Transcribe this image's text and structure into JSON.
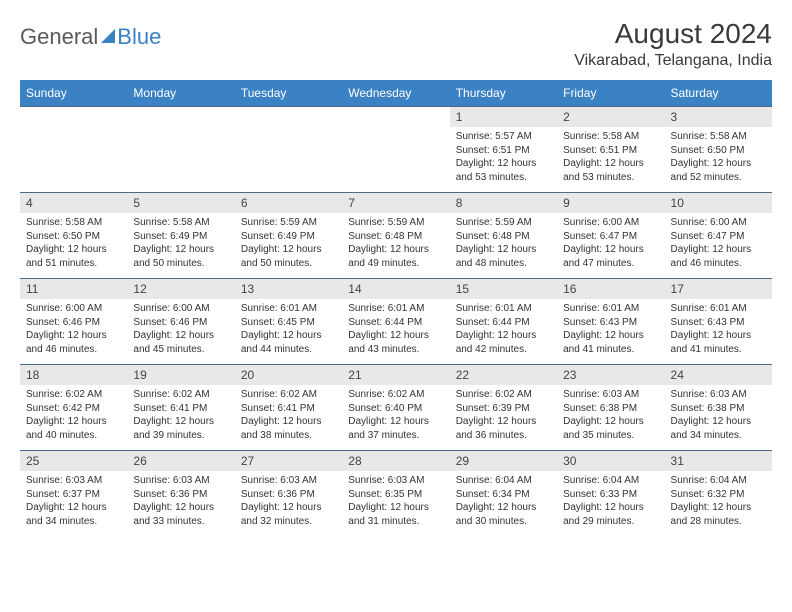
{
  "logo": {
    "part1": "General",
    "part2": "Blue"
  },
  "title": "August 2024",
  "location": "Vikarabad, Telangana, India",
  "colors": {
    "header_bg": "#3b82c4",
    "header_fg": "#ffffff",
    "daynum_bg": "#e8e8e8",
    "border": "#4a6a8a",
    "text": "#333333"
  },
  "days_of_week": [
    "Sunday",
    "Monday",
    "Tuesday",
    "Wednesday",
    "Thursday",
    "Friday",
    "Saturday"
  ],
  "weeks": [
    [
      null,
      null,
      null,
      null,
      {
        "n": "1",
        "sr": "5:57 AM",
        "ss": "6:51 PM",
        "dl": "12 hours and 53 minutes."
      },
      {
        "n": "2",
        "sr": "5:58 AM",
        "ss": "6:51 PM",
        "dl": "12 hours and 53 minutes."
      },
      {
        "n": "3",
        "sr": "5:58 AM",
        "ss": "6:50 PM",
        "dl": "12 hours and 52 minutes."
      }
    ],
    [
      {
        "n": "4",
        "sr": "5:58 AM",
        "ss": "6:50 PM",
        "dl": "12 hours and 51 minutes."
      },
      {
        "n": "5",
        "sr": "5:58 AM",
        "ss": "6:49 PM",
        "dl": "12 hours and 50 minutes."
      },
      {
        "n": "6",
        "sr": "5:59 AM",
        "ss": "6:49 PM",
        "dl": "12 hours and 50 minutes."
      },
      {
        "n": "7",
        "sr": "5:59 AM",
        "ss": "6:48 PM",
        "dl": "12 hours and 49 minutes."
      },
      {
        "n": "8",
        "sr": "5:59 AM",
        "ss": "6:48 PM",
        "dl": "12 hours and 48 minutes."
      },
      {
        "n": "9",
        "sr": "6:00 AM",
        "ss": "6:47 PM",
        "dl": "12 hours and 47 minutes."
      },
      {
        "n": "10",
        "sr": "6:00 AM",
        "ss": "6:47 PM",
        "dl": "12 hours and 46 minutes."
      }
    ],
    [
      {
        "n": "11",
        "sr": "6:00 AM",
        "ss": "6:46 PM",
        "dl": "12 hours and 46 minutes."
      },
      {
        "n": "12",
        "sr": "6:00 AM",
        "ss": "6:46 PM",
        "dl": "12 hours and 45 minutes."
      },
      {
        "n": "13",
        "sr": "6:01 AM",
        "ss": "6:45 PM",
        "dl": "12 hours and 44 minutes."
      },
      {
        "n": "14",
        "sr": "6:01 AM",
        "ss": "6:44 PM",
        "dl": "12 hours and 43 minutes."
      },
      {
        "n": "15",
        "sr": "6:01 AM",
        "ss": "6:44 PM",
        "dl": "12 hours and 42 minutes."
      },
      {
        "n": "16",
        "sr": "6:01 AM",
        "ss": "6:43 PM",
        "dl": "12 hours and 41 minutes."
      },
      {
        "n": "17",
        "sr": "6:01 AM",
        "ss": "6:43 PM",
        "dl": "12 hours and 41 minutes."
      }
    ],
    [
      {
        "n": "18",
        "sr": "6:02 AM",
        "ss": "6:42 PM",
        "dl": "12 hours and 40 minutes."
      },
      {
        "n": "19",
        "sr": "6:02 AM",
        "ss": "6:41 PM",
        "dl": "12 hours and 39 minutes."
      },
      {
        "n": "20",
        "sr": "6:02 AM",
        "ss": "6:41 PM",
        "dl": "12 hours and 38 minutes."
      },
      {
        "n": "21",
        "sr": "6:02 AM",
        "ss": "6:40 PM",
        "dl": "12 hours and 37 minutes."
      },
      {
        "n": "22",
        "sr": "6:02 AM",
        "ss": "6:39 PM",
        "dl": "12 hours and 36 minutes."
      },
      {
        "n": "23",
        "sr": "6:03 AM",
        "ss": "6:38 PM",
        "dl": "12 hours and 35 minutes."
      },
      {
        "n": "24",
        "sr": "6:03 AM",
        "ss": "6:38 PM",
        "dl": "12 hours and 34 minutes."
      }
    ],
    [
      {
        "n": "25",
        "sr": "6:03 AM",
        "ss": "6:37 PM",
        "dl": "12 hours and 34 minutes."
      },
      {
        "n": "26",
        "sr": "6:03 AM",
        "ss": "6:36 PM",
        "dl": "12 hours and 33 minutes."
      },
      {
        "n": "27",
        "sr": "6:03 AM",
        "ss": "6:36 PM",
        "dl": "12 hours and 32 minutes."
      },
      {
        "n": "28",
        "sr": "6:03 AM",
        "ss": "6:35 PM",
        "dl": "12 hours and 31 minutes."
      },
      {
        "n": "29",
        "sr": "6:04 AM",
        "ss": "6:34 PM",
        "dl": "12 hours and 30 minutes."
      },
      {
        "n": "30",
        "sr": "6:04 AM",
        "ss": "6:33 PM",
        "dl": "12 hours and 29 minutes."
      },
      {
        "n": "31",
        "sr": "6:04 AM",
        "ss": "6:32 PM",
        "dl": "12 hours and 28 minutes."
      }
    ]
  ],
  "labels": {
    "sunrise": "Sunrise: ",
    "sunset": "Sunset: ",
    "daylight": "Daylight: "
  }
}
